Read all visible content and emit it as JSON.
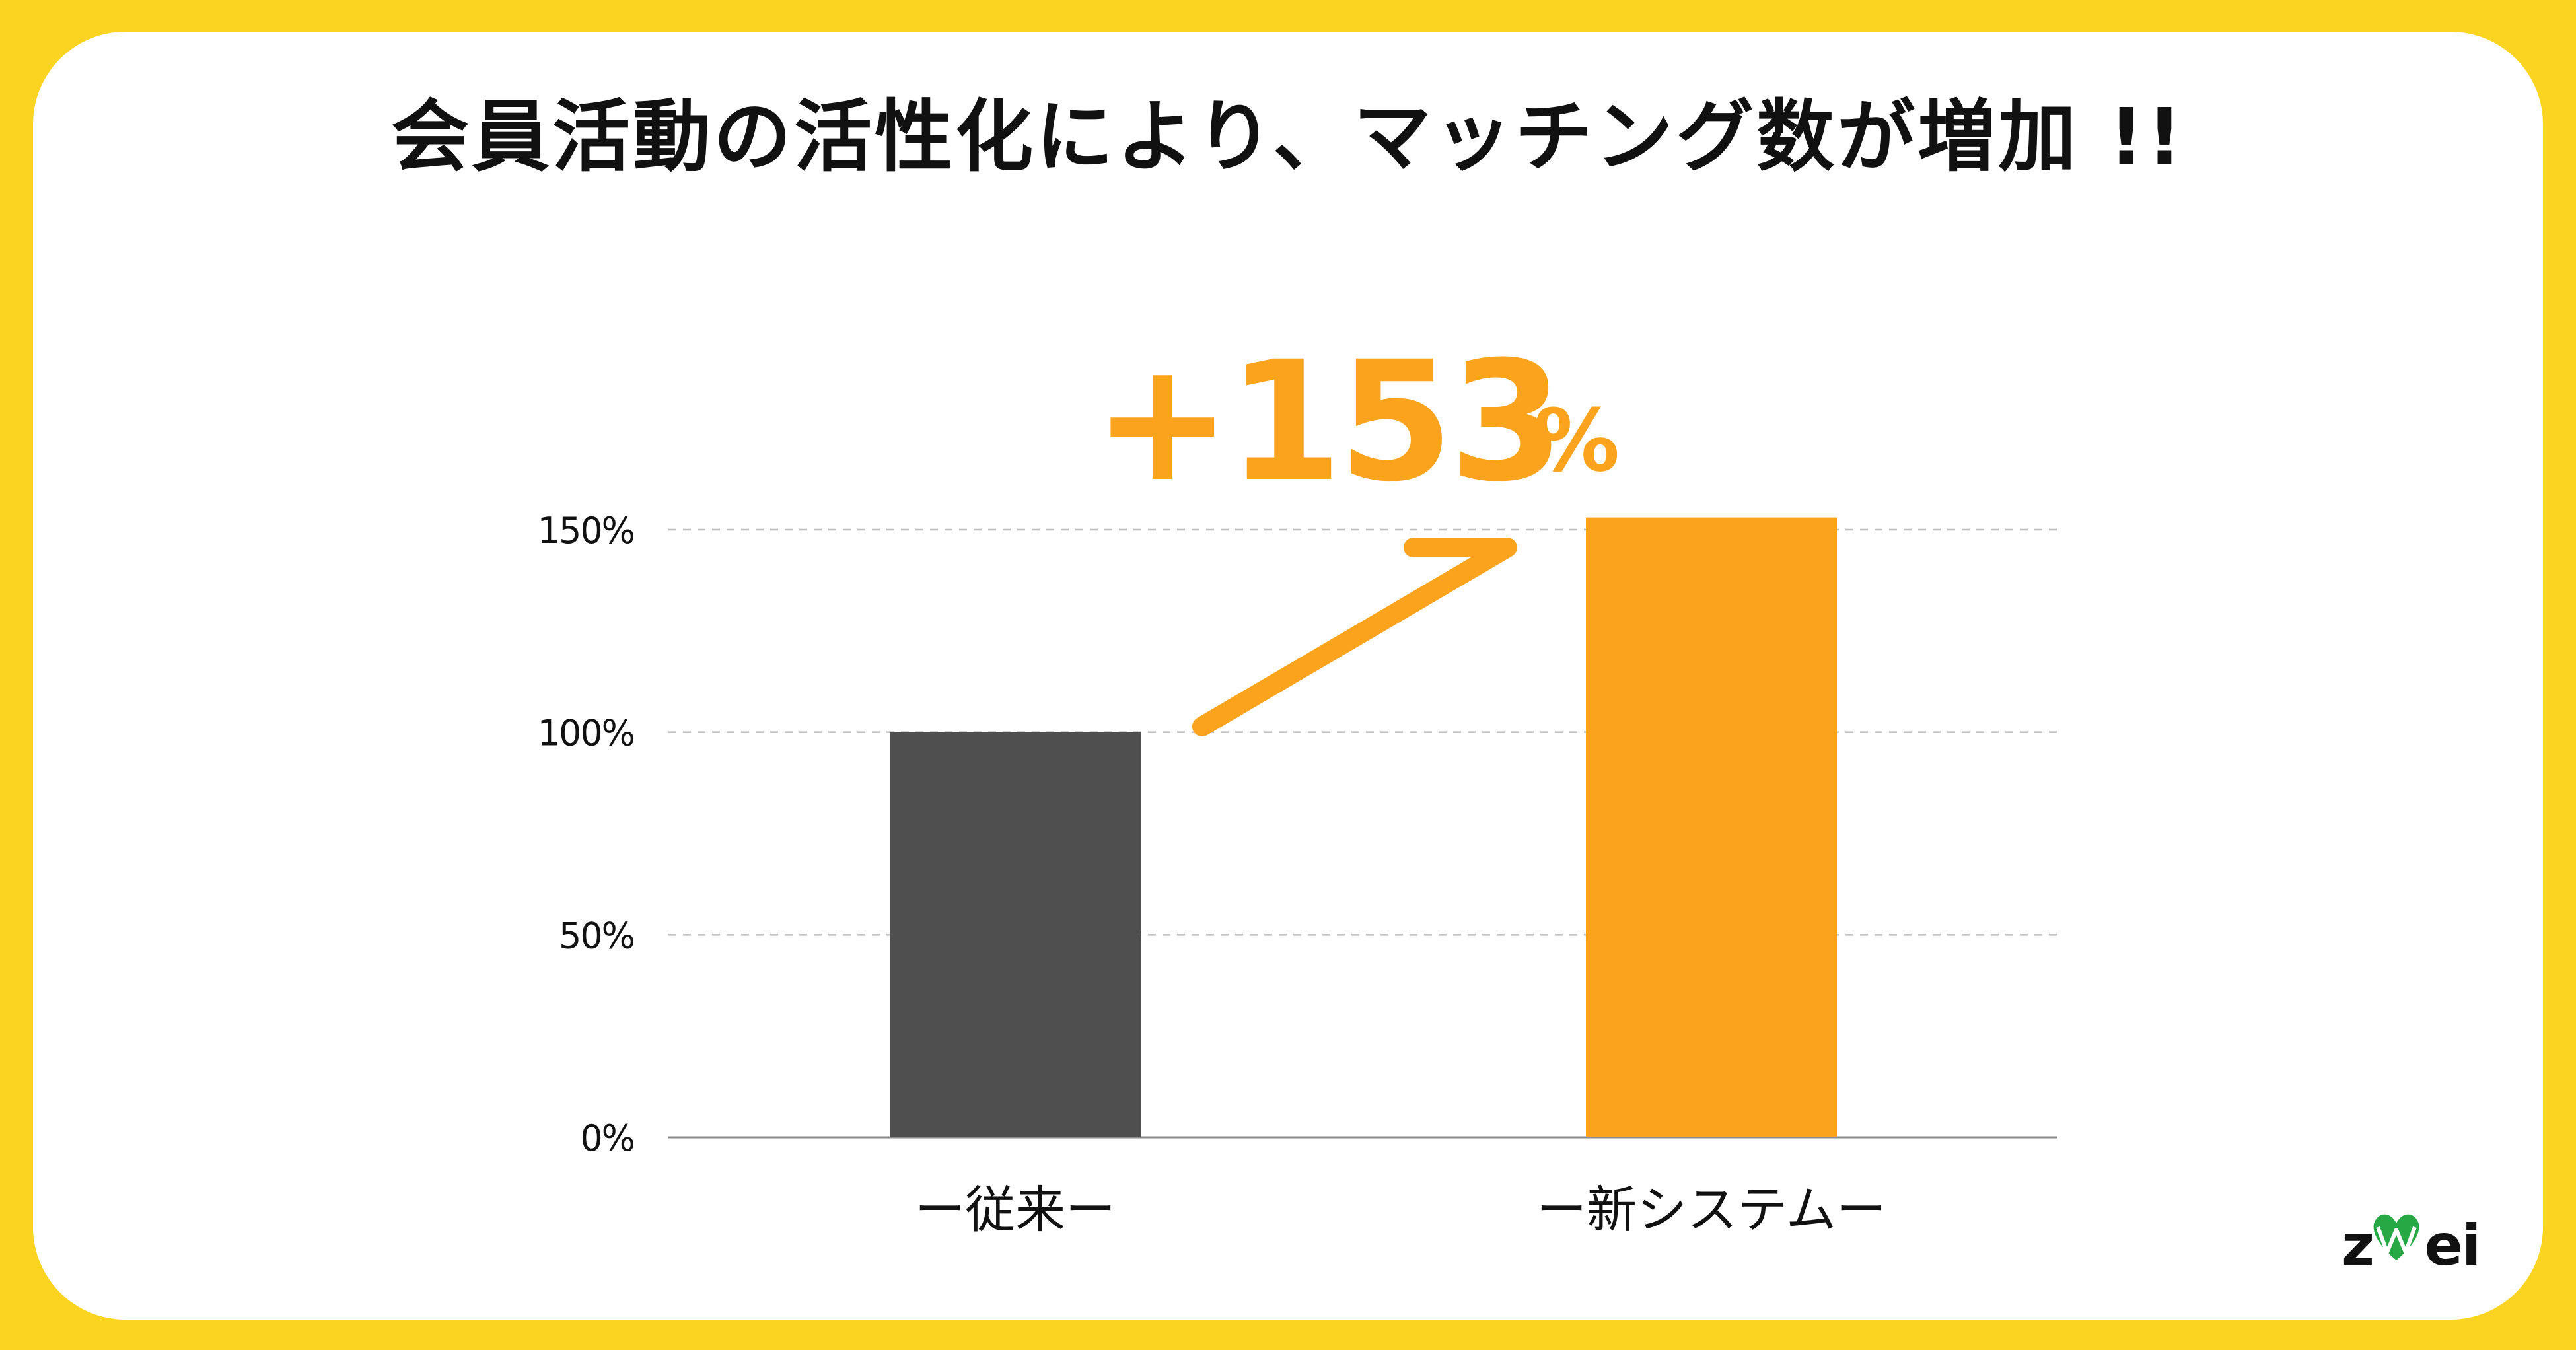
{
  "title": "会員活動の活性化により、マッチング数が増加 !!",
  "logo": {
    "text": "zwei",
    "icon": "heart-icon"
  },
  "colors": {
    "background": "#FBD422",
    "card": "#FFFFFF",
    "accent": "#FBA31C",
    "legacy_bar": "#4F4F4F",
    "axis": "#8A8A8A",
    "grid": "#BDBDBD",
    "text": "#111111",
    "logo_green": "#27A844"
  },
  "chart_data": {
    "type": "bar",
    "categories": [
      "ー従来ー",
      "ー新システムー"
    ],
    "values": [
      100,
      153
    ],
    "ylim": [
      0,
      150
    ],
    "yticks": [
      0,
      50,
      100,
      150
    ],
    "ytick_labels": [
      "0%",
      "50%",
      "100%",
      "150%"
    ],
    "grid": true,
    "annotation": {
      "value": "+153",
      "unit": "%"
    },
    "title": "",
    "xlabel": "",
    "ylabel": ""
  }
}
